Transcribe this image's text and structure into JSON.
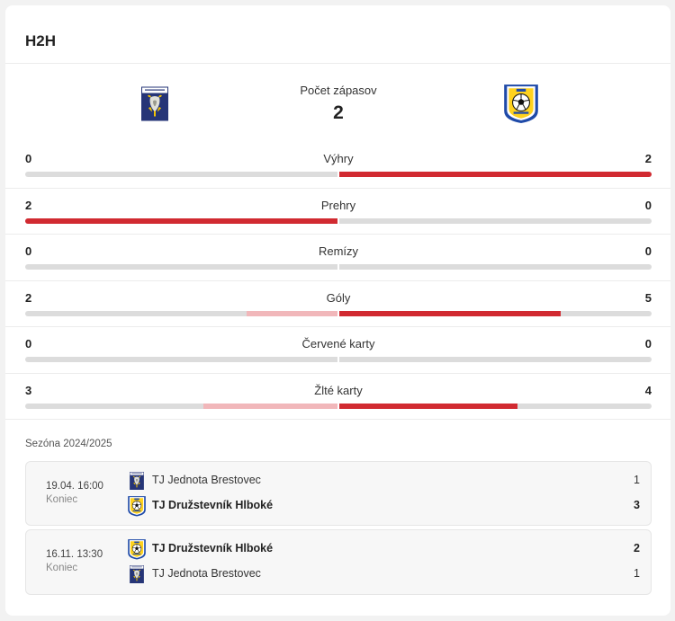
{
  "widget": {
    "title": "H2H"
  },
  "header": {
    "matches_label": "Počet zápasov",
    "matches_value": "2",
    "home_crest_icon": "tj-jednota-brestovec-crest-icon",
    "away_crest_icon": "tj-druzstevnik-hlboke-crest-icon",
    "home_crest_text": "OBEC BRESTOVEC",
    "away_crest_year": "1933"
  },
  "colors": {
    "primary_fill": "#d12a31",
    "secondary_fill": "#f1b7ba",
    "track": "#dcdcdc"
  },
  "stats": [
    {
      "label": "Výhry",
      "left": "0",
      "right": "2",
      "left_fraction": 0,
      "right_fraction": 1,
      "leader": "right"
    },
    {
      "label": "Prehry",
      "left": "2",
      "right": "0",
      "left_fraction": 1,
      "right_fraction": 0,
      "leader": "left"
    },
    {
      "label": "Remízy",
      "left": "0",
      "right": "0",
      "left_fraction": 0,
      "right_fraction": 0,
      "leader": "none"
    },
    {
      "label": "Góly",
      "left": "2",
      "right": "5",
      "left_fraction": 0.29,
      "right_fraction": 0.71,
      "leader": "right"
    },
    {
      "label": "Červené karty",
      "left": "0",
      "right": "0",
      "left_fraction": 0,
      "right_fraction": 0,
      "leader": "none"
    },
    {
      "label": "Žlté karty",
      "left": "3",
      "right": "4",
      "left_fraction": 0.43,
      "right_fraction": 0.57,
      "leader": "right"
    }
  ],
  "season": {
    "label": "Sezóna 2024/2025"
  },
  "matches": [
    {
      "date": "19.04. 16:00",
      "status": "Koniec",
      "teams": [
        {
          "name": "TJ Jednota Brestovec",
          "score": "1",
          "winner": false,
          "crest_icon": "tj-jednota-brestovec-crest-icon"
        },
        {
          "name": "TJ Družstevník Hlboké",
          "score": "3",
          "winner": true,
          "crest_icon": "tj-druzstevnik-hlboke-crest-icon"
        }
      ]
    },
    {
      "date": "16.11. 13:30",
      "status": "Koniec",
      "teams": [
        {
          "name": "TJ Družstevník Hlboké",
          "score": "2",
          "winner": true,
          "crest_icon": "tj-druzstevnik-hlboke-crest-icon"
        },
        {
          "name": "TJ Jednota Brestovec",
          "score": "1",
          "winner": false,
          "crest_icon": "tj-jednota-brestovec-crest-icon"
        }
      ]
    }
  ]
}
